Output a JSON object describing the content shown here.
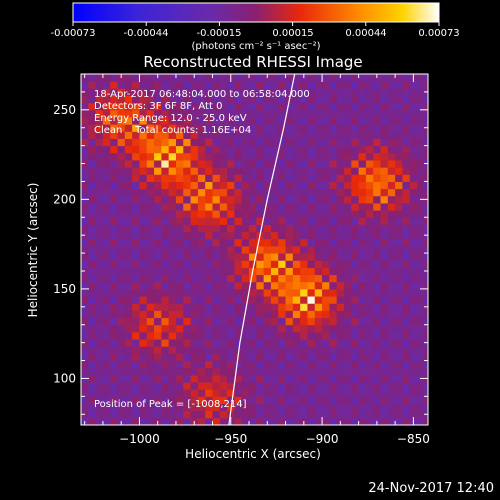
{
  "colorbar": {
    "tick_labels": [
      "-0.00073",
      "-0.00044",
      "-0.00015",
      "0.00015",
      "0.00044",
      "0.00073"
    ],
    "units": "(photons cm⁻² s⁻¹ asec⁻²)",
    "range": [
      -0.00073,
      0.00073
    ]
  },
  "chart_data": {
    "type": "heatmap",
    "title": "Reconstructed RHESSI Image",
    "xlabel": "Heliocentric X (arcsec)",
    "ylabel": "Heliocentric Y (arcsec)",
    "xlim": [
      -1032,
      -842
    ],
    "ylim": [
      74,
      270
    ],
    "x_ticks": [
      -1000,
      -950,
      -900,
      -850
    ],
    "y_ticks": [
      100,
      150,
      200,
      250
    ],
    "x_tick_labels": [
      "−1000",
      "−950",
      "−900",
      "−850"
    ],
    "y_tick_labels": [
      "100",
      "150",
      "200",
      "250"
    ],
    "limb_line": [
      [
        -951,
        74
      ],
      [
        -945,
        120
      ],
      [
        -938,
        160
      ],
      [
        -930,
        200
      ],
      [
        -921,
        240
      ],
      [
        -915,
        270
      ]
    ],
    "bright_regions": [
      {
        "x": -985,
        "y": 225,
        "amp": 0.0007
      },
      {
        "x": -962,
        "y": 200,
        "amp": 0.00055
      },
      {
        "x": -930,
        "y": 165,
        "amp": 0.0006
      },
      {
        "x": -908,
        "y": 145,
        "amp": 0.0007
      },
      {
        "x": -870,
        "y": 210,
        "amp": 0.0006
      },
      {
        "x": -1010,
        "y": 245,
        "amp": 0.0005
      },
      {
        "x": -990,
        "y": 130,
        "amp": 0.0004
      },
      {
        "x": -960,
        "y": 90,
        "amp": 0.00035
      }
    ],
    "peak": [
      -1008,
      214
    ]
  },
  "info": {
    "line1": "18-Apr-2017 06:48:04.000 to 06:58:04.000",
    "line2": "Detectors: 3F 6F 8F, Att 0",
    "line3": "Energy Range: 12.0 - 25.0 keV",
    "line4": "Clean    Total counts: 1.16E+04",
    "peak_text": "Position of Peak = [-1008,214]"
  },
  "footer": {
    "date": "24-Nov-2017 12:40"
  }
}
